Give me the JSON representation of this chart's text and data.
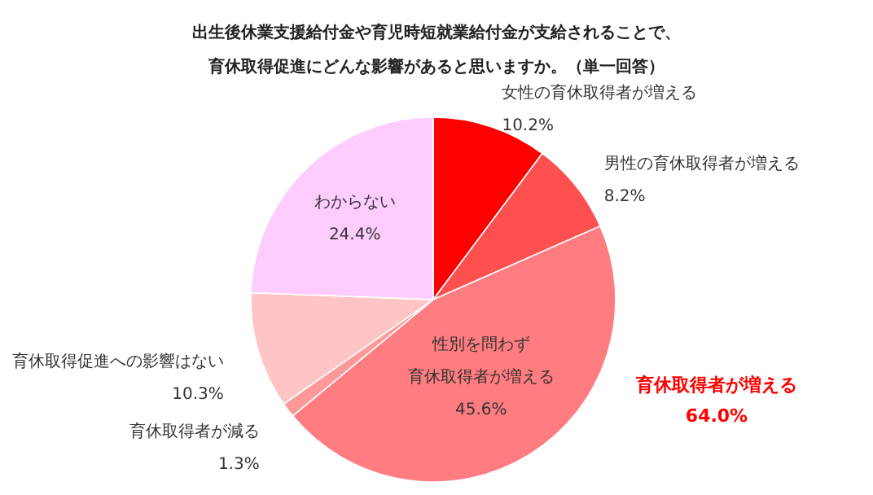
{
  "chart_data": {
    "type": "pie",
    "title": [
      "出生後休業支援給付金や育児時短就業給付金が支給されることで、",
      "育休取得促進にどんな影響があると思いますか。（単一回答）"
    ],
    "categories": [
      "女性の育休取得者が増える",
      "男性の育休取得者が増える",
      "性別を問わず育休取得者が増える",
      "育休取得者が減る",
      "育休取得促進への影響はない",
      "わからない"
    ],
    "values": [
      10.2,
      8.2,
      45.6,
      1.3,
      10.3,
      24.4
    ],
    "value_labels": [
      "10.2%",
      "8.2%",
      "45.6%",
      "1.3%",
      "10.3%",
      "24.4%"
    ],
    "colors": [
      "#ff0000",
      "#ff5050",
      "#ff7c80",
      "#ff9999",
      "#ffc5c5",
      "#ffccff"
    ],
    "annotations": [
      "育休取得者が増える\n64.0%"
    ],
    "legend": false
  }
}
